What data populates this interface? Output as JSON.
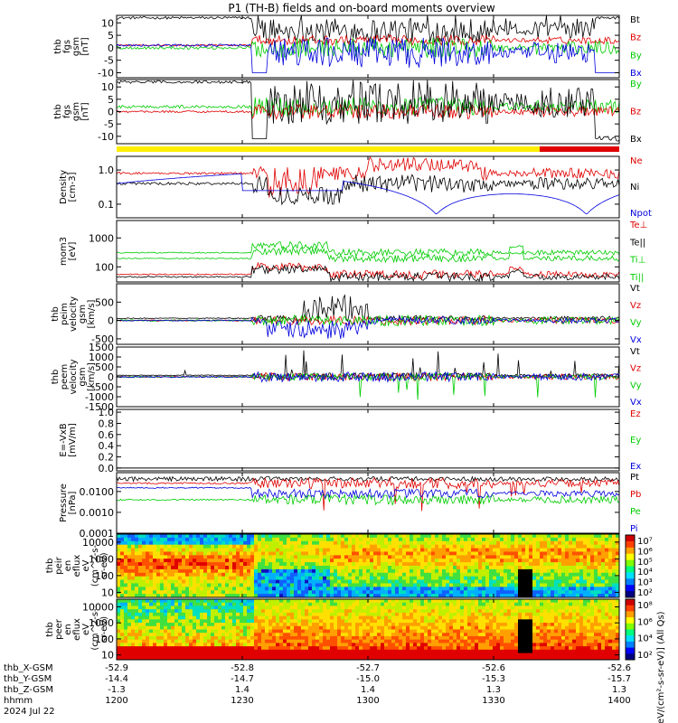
{
  "title": "P1 (TH-B) fields and on-board moments overview",
  "colors": {
    "black": "#000000",
    "red": "#e00000",
    "green": "#00cc00",
    "blue": "#0000dd",
    "yellow": "#ffee00",
    "barred": "#e00000"
  },
  "chart_data": [
    {
      "id": "p1",
      "type": "line",
      "ylabel_lines": [
        "thb",
        "fgs",
        "gsm",
        "[nT]"
      ],
      "yticks": [
        "10",
        "5",
        "0",
        "-5",
        "-10"
      ],
      "ylim": [
        -12,
        13
      ],
      "series": [
        {
          "name": "Bt",
          "color": "black"
        },
        {
          "name": "Bz",
          "color": "red"
        },
        {
          "name": "By",
          "color": "green"
        },
        {
          "name": "Bx",
          "color": "blue"
        }
      ]
    },
    {
      "id": "p2",
      "type": "line",
      "ylabel_lines": [
        "thb",
        "fgs",
        "gsm",
        "[nT]"
      ],
      "yticks": [
        "10",
        "5",
        "0",
        "-5",
        "-10"
      ],
      "ylim": [
        -13,
        13
      ],
      "series": [
        {
          "name": "By",
          "color": "green"
        },
        {
          "name": "Bz",
          "color": "red"
        },
        {
          "name": "Bx",
          "color": "black"
        }
      ]
    },
    {
      "id": "p3",
      "type": "line",
      "ylog": true,
      "ylabel_lines": [
        "Density",
        "[cm-3]"
      ],
      "yticks": [
        "1.0",
        "0.1"
      ],
      "ylim": [
        0.04,
        2.5
      ],
      "series": [
        {
          "name": "Ne",
          "color": "red"
        },
        {
          "name": "Ni",
          "color": "black"
        },
        {
          "name": "Npot",
          "color": "blue"
        }
      ]
    },
    {
      "id": "p4",
      "type": "line",
      "ylog": true,
      "ylabel_lines": [
        "mom3",
        "[eV]"
      ],
      "yticks": [
        "1000",
        "100"
      ],
      "ylim": [
        30,
        4000
      ],
      "series": [
        {
          "name": "Te⊥",
          "color": "red"
        },
        {
          "name": "Te||",
          "color": "black"
        },
        {
          "name": "Ti⊥",
          "color": "green"
        },
        {
          "name": "Ti||",
          "color": "green"
        }
      ]
    },
    {
      "id": "p5",
      "type": "line",
      "ylabel_lines": [
        "thb",
        "peim",
        "velocity",
        "gsm",
        "[km/s]"
      ],
      "yticks": [
        "500",
        "0",
        "-500"
      ],
      "ylim": [
        -650,
        1000
      ],
      "series": [
        {
          "name": "Vt",
          "color": "black"
        },
        {
          "name": "Vz",
          "color": "red"
        },
        {
          "name": "Vy",
          "color": "green"
        },
        {
          "name": "Vx",
          "color": "blue"
        }
      ]
    },
    {
      "id": "p6",
      "type": "line",
      "ylabel_lines": [
        "thb",
        "peem",
        "velocity",
        "gsm",
        "[km/s]"
      ],
      "yticks": [
        "1500",
        "1000",
        "500",
        "0",
        "-500",
        "-1000",
        "-1500"
      ],
      "ylim": [
        -1500,
        1500
      ],
      "series": [
        {
          "name": "Vt",
          "color": "black"
        },
        {
          "name": "Vz",
          "color": "red"
        },
        {
          "name": "Vy",
          "color": "green"
        },
        {
          "name": "Vx",
          "color": "blue"
        }
      ]
    },
    {
      "id": "p7",
      "type": "line",
      "ylabel_lines": [
        "E=-VxB",
        "[mV/m]"
      ],
      "yticks": [
        "1.0",
        "0.8",
        "0.6",
        "0.4",
        "0.2",
        "0.0"
      ],
      "ylim": [
        -0.05,
        1.05
      ],
      "series": [
        {
          "name": "Ez",
          "color": "red"
        },
        {
          "name": "Ey",
          "color": "green"
        },
        {
          "name": "Ex",
          "color": "blue"
        }
      ]
    },
    {
      "id": "p8",
      "type": "line",
      "ylog": true,
      "ylabel_lines": [
        "Pressure",
        "[nPa]"
      ],
      "yticks": [
        "0.0100",
        "0.0010",
        "0.0001"
      ],
      "ylim": [
        0.0001,
        0.08
      ],
      "series": [
        {
          "name": "Pt",
          "color": "black"
        },
        {
          "name": "Pb",
          "color": "red"
        },
        {
          "name": "Pe",
          "color": "green"
        },
        {
          "name": "Pi",
          "color": "blue"
        }
      ]
    },
    {
      "id": "p9",
      "type": "heatmap",
      "ylog": true,
      "ylabel_lines": [
        "thb",
        "peir",
        "en",
        "eflux",
        "eV",
        "(cm^2-s-",
        "sr-eV)"
      ],
      "yticks": [
        "10000",
        "1000",
        "100",
        "10"
      ],
      "ylim": [
        5,
        30000
      ]
    },
    {
      "id": "p10",
      "type": "heatmap",
      "ylog": true,
      "ylabel_lines": [
        "thb",
        "peer",
        "en",
        "eflux",
        "eV",
        "(cm^2-s-",
        "sr-eV)"
      ],
      "yticks": [
        "10000",
        "1000",
        "100",
        "10"
      ],
      "ylim": [
        5,
        30000
      ]
    }
  ],
  "colorbars": [
    {
      "ticks": [
        "10⁷",
        "10⁶",
        "10⁵",
        "10⁴",
        "10³",
        "10²"
      ],
      "log_range": [
        2,
        7
      ]
    },
    {
      "ticks": [
        "10⁸",
        "10⁶",
        "10⁴",
        "10²"
      ],
      "log_range": [
        1,
        9
      ]
    }
  ],
  "colorbar_label": "[eV/(cm²-s-sr-eV)] (All Qs)",
  "x_axis": {
    "time_range": [
      "12:00",
      "14:00"
    ],
    "ticks": [
      {
        "t": "1200",
        "x": "-52.9",
        "y": "-14.4",
        "z": "-1.3"
      },
      {
        "t": "1230",
        "x": "-52.8",
        "y": "-14.7",
        "z": "1.4"
      },
      {
        "t": "1300",
        "x": "-52.7",
        "y": "-15.0",
        "z": "1.4"
      },
      {
        "t": "1330",
        "x": "-52.6",
        "y": "-15.3",
        "z": "1.3"
      },
      {
        "t": "1400",
        "x": "-52.6",
        "y": "-15.7",
        "z": "1.3"
      }
    ],
    "row_labels": [
      "thb_X-GSM",
      "thb_Y-GSM",
      "thb_Z-GSM",
      "hhmm",
      "2024 Jul 22"
    ]
  },
  "status_bar": [
    {
      "from": "12:00",
      "to": "13:41",
      "color": "yellow"
    },
    {
      "from": "13:41",
      "to": "14:00",
      "color": "barred"
    }
  ]
}
